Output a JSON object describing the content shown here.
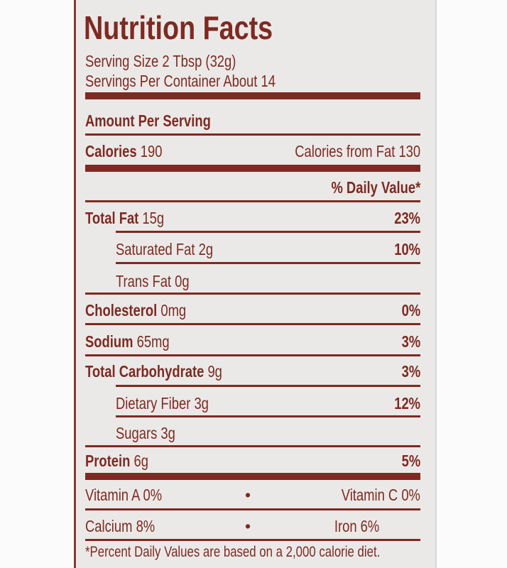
{
  "title": "Nutrition Facts",
  "serving_size": "Serving Size 2 Tbsp (32g)",
  "servings_per_container": "Servings Per Container About 14",
  "amount_per_serving": "Amount Per Serving",
  "calories": {
    "label": "Calories",
    "value": "190",
    "from_fat_label": "Calories from Fat",
    "from_fat_value": "130"
  },
  "daily_value_header": "% Daily Value*",
  "nutrients": [
    {
      "label": "Total Fat",
      "amount": "15g",
      "dv": "23%"
    },
    {
      "label": "Saturated Fat",
      "amount": "2g",
      "dv": "10%"
    },
    {
      "label": "Trans Fat",
      "amount": "0g",
      "dv": ""
    },
    {
      "label": "Cholesterol",
      "amount": "0mg",
      "dv": "0%"
    },
    {
      "label": "Sodium",
      "amount": "65mg",
      "dv": "3%"
    },
    {
      "label": "Total Carbohydrate",
      "amount": "9g",
      "dv": "3%"
    },
    {
      "label": "Dietary Fiber",
      "amount": "3g",
      "dv": "12%"
    },
    {
      "label": "Sugars",
      "amount": "3g",
      "dv": ""
    },
    {
      "label": "Protein",
      "amount": "6g",
      "dv": "5%"
    }
  ],
  "vitamins": [
    {
      "left": "Vitamin A 0%",
      "right": "Vitamin C 0%"
    },
    {
      "left": "Calcium 8%",
      "right": "Iron 6%"
    }
  ],
  "bullet": "•",
  "footnote": "*Percent Daily Values are based on a 2,000 calorie diet.",
  "colors": {
    "ink": "#7d2a22",
    "label_bg": "#ebe9e7"
  }
}
